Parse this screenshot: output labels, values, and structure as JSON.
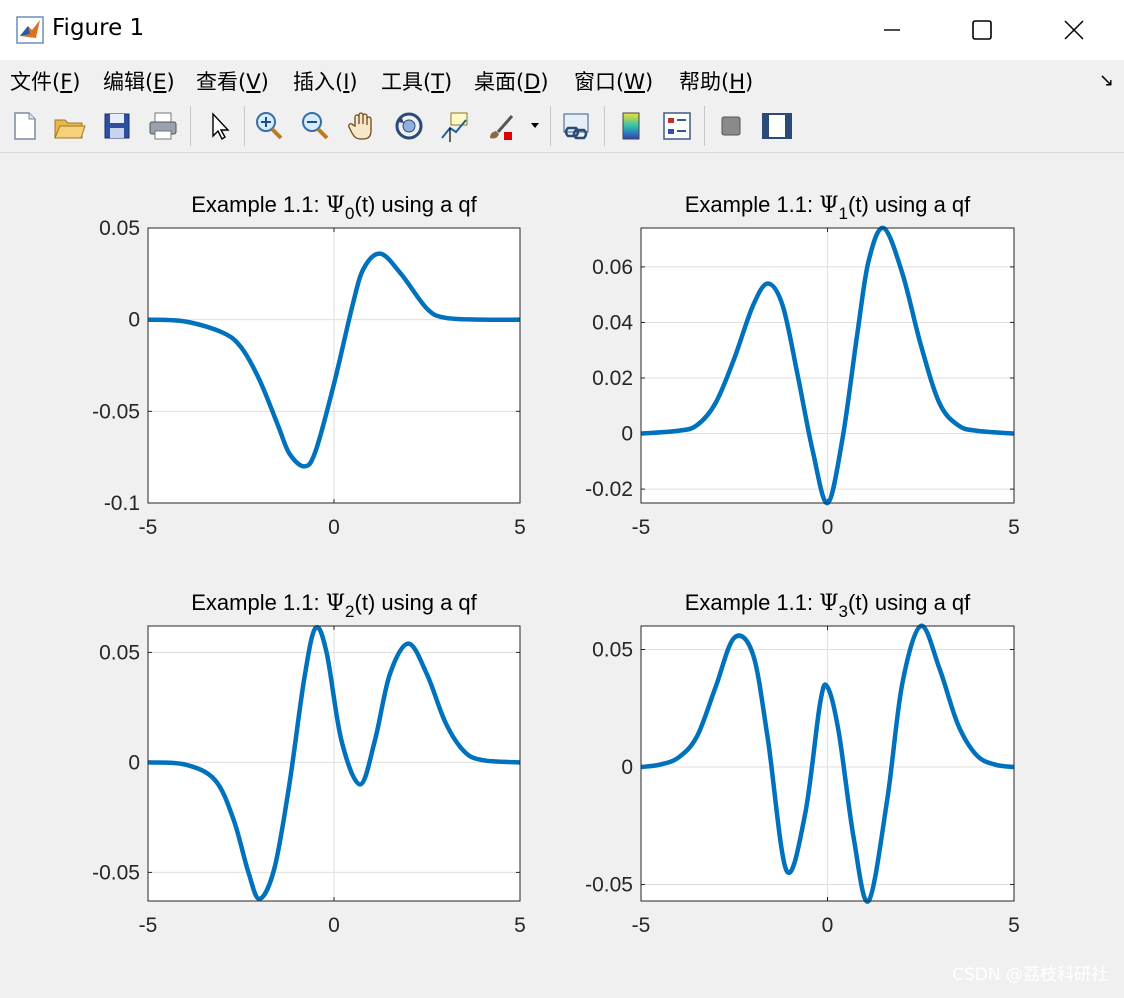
{
  "window": {
    "title": "Figure 1"
  },
  "menu": [
    {
      "label": "文件(",
      "key": "F",
      "suffix": ")"
    },
    {
      "label": "编辑(",
      "key": "E",
      "suffix": ")"
    },
    {
      "label": "查看(",
      "key": "V",
      "suffix": ")"
    },
    {
      "label": "插入(",
      "key": "I",
      "suffix": ")"
    },
    {
      "label": "工具(",
      "key": "T",
      "suffix": ")"
    },
    {
      "label": "桌面(",
      "key": "D",
      "suffix": ")"
    },
    {
      "label": "窗口(",
      "key": "W",
      "suffix": ")"
    },
    {
      "label": "帮助(",
      "key": "H",
      "suffix": ")"
    }
  ],
  "toolbar": [
    "new-file-icon",
    "open-folder-icon",
    "save-icon",
    "print-icon",
    "pointer-icon",
    "zoom-in-icon",
    "zoom-out-icon",
    "pan-hand-icon",
    "rotate-3d-icon",
    "data-cursor-icon",
    "brush-icon",
    "link-plot-icon",
    "colorbar-icon",
    "legend-icon",
    "hide-plot-tools-icon",
    "show-plot-tools-icon"
  ],
  "watermark": "CSDN @荔枝科研社",
  "colors": {
    "line": "#0072bd",
    "grid": "#dfdfdf",
    "axis": "#262626"
  },
  "chart_data": [
    {
      "type": "line",
      "title_prefix": "Example 1.1: ",
      "title_symbol": "Ψ",
      "title_sub": "0",
      "title_suffix": "(t) using a qf",
      "xlim": [
        -5,
        5
      ],
      "ylim": [
        -0.1,
        0.05
      ],
      "xticks": [
        -5,
        0,
        5
      ],
      "xtick_labels": [
        "-5",
        "0",
        "5"
      ],
      "yticks": [
        -0.1,
        -0.05,
        0,
        0.05
      ],
      "ytick_labels": [
        "-0.1",
        "-0.05",
        "0",
        "0.05"
      ],
      "grid": true,
      "x": [
        -5,
        -4,
        -3,
        -2.5,
        -2,
        -1.5,
        -1.2,
        -0.8,
        -0.5,
        0,
        0.5,
        0.8,
        1.25,
        1.8,
        2.5,
        3,
        4,
        5
      ],
      "y": [
        0,
        -0.001,
        -0.007,
        -0.015,
        -0.033,
        -0.058,
        -0.073,
        -0.08,
        -0.072,
        -0.035,
        0.008,
        0.028,
        0.036,
        0.025,
        0.006,
        0.001,
        0,
        0
      ]
    },
    {
      "type": "line",
      "title_prefix": "Example 1.1: ",
      "title_symbol": "Ψ",
      "title_sub": "1",
      "title_suffix": "(t) using a qf",
      "xlim": [
        -5,
        5
      ],
      "ylim": [
        -0.025,
        0.074
      ],
      "xticks": [
        -5,
        0,
        5
      ],
      "xtick_labels": [
        "-5",
        "0",
        "5"
      ],
      "yticks": [
        -0.02,
        0,
        0.02,
        0.04,
        0.06
      ],
      "ytick_labels": [
        "-0.02",
        "0",
        "0.02",
        "0.04",
        "0.06"
      ],
      "grid": true,
      "x": [
        -5,
        -4,
        -3.5,
        -3,
        -2.5,
        -2,
        -1.6,
        -1.2,
        -0.8,
        -0.4,
        0,
        0.4,
        0.8,
        1.1,
        1.5,
        2,
        2.5,
        3,
        3.5,
        4,
        5
      ],
      "y": [
        0,
        0.001,
        0.003,
        0.011,
        0.027,
        0.046,
        0.054,
        0.046,
        0.021,
        -0.006,
        -0.025,
        -0.002,
        0.036,
        0.062,
        0.074,
        0.058,
        0.032,
        0.011,
        0.003,
        0.001,
        0
      ]
    },
    {
      "type": "line",
      "title_prefix": "Example 1.1: ",
      "title_symbol": "Ψ",
      "title_sub": "2",
      "title_suffix": "(t) using a qf",
      "xlim": [
        -5,
        5
      ],
      "ylim": [
        -0.063,
        0.062
      ],
      "xticks": [
        -5,
        0,
        5
      ],
      "xtick_labels": [
        "-5",
        "0",
        "5"
      ],
      "yticks": [
        -0.05,
        0,
        0.05
      ],
      "ytick_labels": [
        "-0.05",
        "0",
        "0.05"
      ],
      "grid": true,
      "x": [
        -5,
        -4,
        -3.2,
        -2.7,
        -2.3,
        -2,
        -1.6,
        -1.2,
        -0.8,
        -0.5,
        -0.2,
        0.2,
        0.7,
        1.1,
        1.5,
        2,
        2.5,
        3,
        3.5,
        4,
        5
      ],
      "y": [
        0,
        -0.001,
        -0.008,
        -0.026,
        -0.05,
        -0.062,
        -0.048,
        -0.01,
        0.038,
        0.061,
        0.05,
        0.01,
        -0.01,
        0.01,
        0.04,
        0.054,
        0.04,
        0.018,
        0.005,
        0.001,
        0
      ]
    },
    {
      "type": "line",
      "title_prefix": "Example 1.1: ",
      "title_symbol": "Ψ",
      "title_sub": "3",
      "title_suffix": "(t) using a qf",
      "xlim": [
        -5,
        5
      ],
      "ylim": [
        -0.057,
        0.06
      ],
      "xticks": [
        -5,
        0,
        5
      ],
      "xtick_labels": [
        "-5",
        "0",
        "5"
      ],
      "yticks": [
        -0.05,
        0,
        0.05
      ],
      "ytick_labels": [
        "-0.05",
        "0",
        "0.05"
      ],
      "grid": true,
      "x": [
        -5,
        -4.5,
        -4,
        -3.5,
        -3,
        -2.5,
        -2,
        -1.6,
        -1.1,
        -0.6,
        -0.2,
        0,
        0.3,
        0.7,
        1.1,
        1.6,
        2,
        2.5,
        3,
        3.5,
        4,
        4.5,
        5
      ],
      "y": [
        0,
        0.001,
        0.004,
        0.013,
        0.034,
        0.055,
        0.048,
        0.012,
        -0.044,
        -0.02,
        0.027,
        0.034,
        0.015,
        -0.03,
        -0.057,
        -0.014,
        0.035,
        0.06,
        0.042,
        0.018,
        0.005,
        0.001,
        0
      ]
    }
  ]
}
